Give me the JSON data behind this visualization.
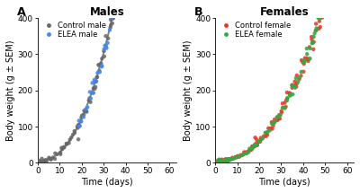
{
  "panel_A": {
    "title": "Males",
    "label": "A",
    "control_color": "#666666",
    "elea_color": "#4488EE",
    "legend": [
      "Control male",
      "ELEA male"
    ],
    "xlim": [
      0,
      63
    ],
    "ylim": [
      0,
      400
    ],
    "xticks": [
      0,
      10,
      20,
      30,
      40,
      50,
      60
    ],
    "yticks": [
      0,
      100,
      200,
      300,
      400
    ],
    "xlabel": "Time (days)",
    "ylabel": "Body weight (g ± SEM)"
  },
  "panel_B": {
    "title": "Females",
    "label": "B",
    "control_color": "#EE3322",
    "elea_color": "#33AA44",
    "legend": [
      "Control female",
      "ELEA female"
    ],
    "xlim": [
      0,
      63
    ],
    "ylim": [
      0,
      400
    ],
    "xticks": [
      0,
      10,
      20,
      30,
      40,
      50,
      60
    ],
    "yticks": [
      0,
      100,
      200,
      300,
      400
    ],
    "xlabel": "Time (days)",
    "ylabel": "Body weight (g ± SEM)"
  },
  "background_color": "#FFFFFF",
  "title_fontsize": 8.5,
  "label_fontsize": 7,
  "tick_fontsize": 6.5,
  "legend_fontsize": 6,
  "marker_size": 10,
  "line_width": 1.5
}
